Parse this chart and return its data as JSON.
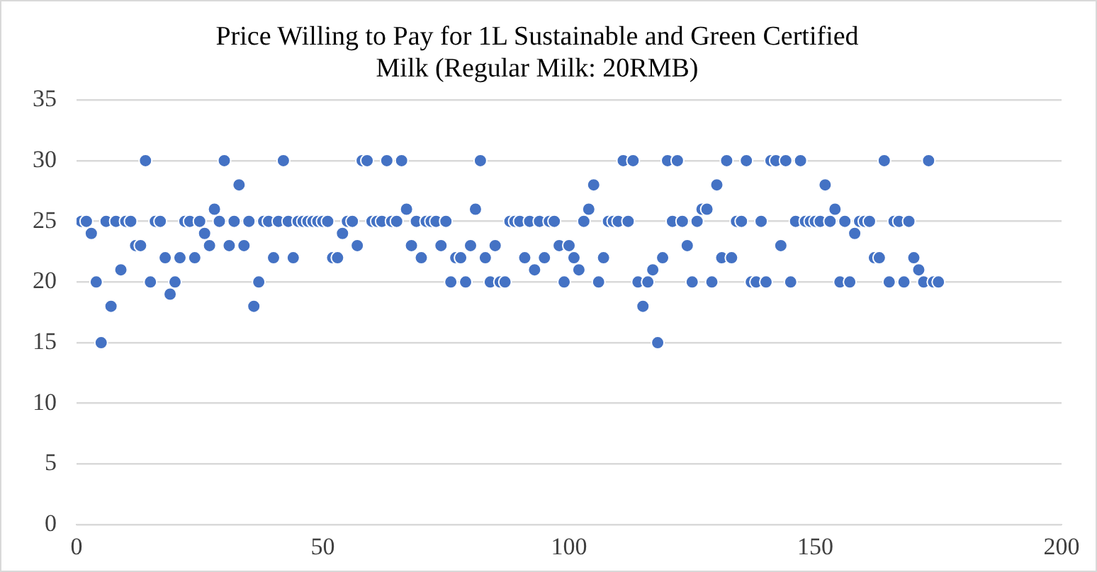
{
  "chart_data": {
    "type": "scatter",
    "title": "Price Willing to Pay for 1L Sustainable and Green Certified\nMilk (Regular Milk: 20RMB)",
    "x": [
      1,
      2,
      3,
      4,
      5,
      6,
      7,
      8,
      9,
      10,
      11,
      12,
      13,
      14,
      15,
      16,
      17,
      18,
      19,
      20,
      21,
      22,
      23,
      24,
      25,
      26,
      27,
      28,
      29,
      30,
      31,
      32,
      33,
      34,
      35,
      36,
      37,
      38,
      39,
      40,
      41,
      42,
      43,
      44,
      45,
      46,
      47,
      48,
      49,
      50,
      51,
      52,
      53,
      54,
      55,
      56,
      57,
      58,
      59,
      60,
      61,
      62,
      63,
      64,
      65,
      66,
      67,
      68,
      69,
      70,
      71,
      72,
      73,
      74,
      75,
      76,
      77,
      78,
      79,
      80,
      81,
      82,
      83,
      84,
      85,
      86,
      87,
      88,
      89,
      90,
      91,
      92,
      93,
      94,
      95,
      96,
      97,
      98,
      99,
      100,
      101,
      102,
      103,
      104,
      105,
      106,
      107,
      108,
      109,
      110,
      111,
      112,
      113,
      114,
      115,
      116,
      117,
      118,
      119,
      120,
      121,
      122,
      123,
      124,
      125,
      126,
      127,
      128,
      129,
      130,
      131,
      132,
      133,
      134,
      135,
      136,
      137,
      138,
      139,
      140,
      141,
      142,
      143,
      144,
      145,
      146,
      147,
      148,
      149,
      150,
      151,
      152,
      153,
      154,
      155,
      156,
      157,
      158,
      159,
      160,
      161,
      162,
      163,
      164,
      165,
      166,
      167,
      168,
      169,
      170,
      171,
      172,
      173,
      174,
      175
    ],
    "series": [
      {
        "color": "#4472c4",
        "values": [
          25,
          25,
          24,
          20,
          15,
          25,
          18,
          25,
          21,
          25,
          25,
          23,
          23,
          30,
          20,
          25,
          25,
          22,
          19,
          20,
          22,
          25,
          25,
          22,
          25,
          24,
          23,
          26,
          25,
          30,
          23,
          25,
          28,
          23,
          25,
          18,
          20,
          25,
          25,
          22,
          25,
          30,
          25,
          22,
          25,
          25,
          25,
          25,
          25,
          25,
          25,
          22,
          22,
          24,
          25,
          25,
          23,
          30,
          30,
          25,
          25,
          25,
          30,
          25,
          25,
          30,
          26,
          23,
          25,
          22,
          25,
          25,
          25,
          23,
          25,
          20,
          22,
          22,
          20,
          23,
          26,
          30,
          22,
          20,
          23,
          20,
          20,
          25,
          25,
          25,
          22,
          25,
          21,
          25,
          22,
          25,
          25,
          23,
          20,
          23,
          22,
          21,
          25,
          26,
          28,
          20,
          22,
          25,
          25,
          25,
          30,
          25,
          30,
          20,
          18,
          20,
          21,
          15,
          22,
          30,
          25,
          30,
          25,
          23,
          20,
          25,
          26,
          26,
          20,
          28,
          22,
          30,
          22,
          25,
          25,
          30,
          20,
          20,
          25,
          20,
          30,
          30,
          23,
          30,
          20,
          25,
          30,
          25,
          25,
          25,
          25,
          28,
          25,
          26,
          20,
          25,
          20,
          24,
          25,
          25,
          25,
          22,
          22,
          30,
          20,
          25,
          25,
          20,
          25,
          22,
          21,
          20,
          30,
          20,
          20
        ]
      }
    ],
    "xlim": [
      0,
      200
    ],
    "xticks": [
      0,
      50,
      100,
      150,
      200
    ],
    "ylim": [
      0,
      35
    ],
    "yticks": [
      0,
      5,
      10,
      15,
      20,
      25,
      30,
      35
    ],
    "grid": "y",
    "legend": false,
    "marker": "circle"
  }
}
